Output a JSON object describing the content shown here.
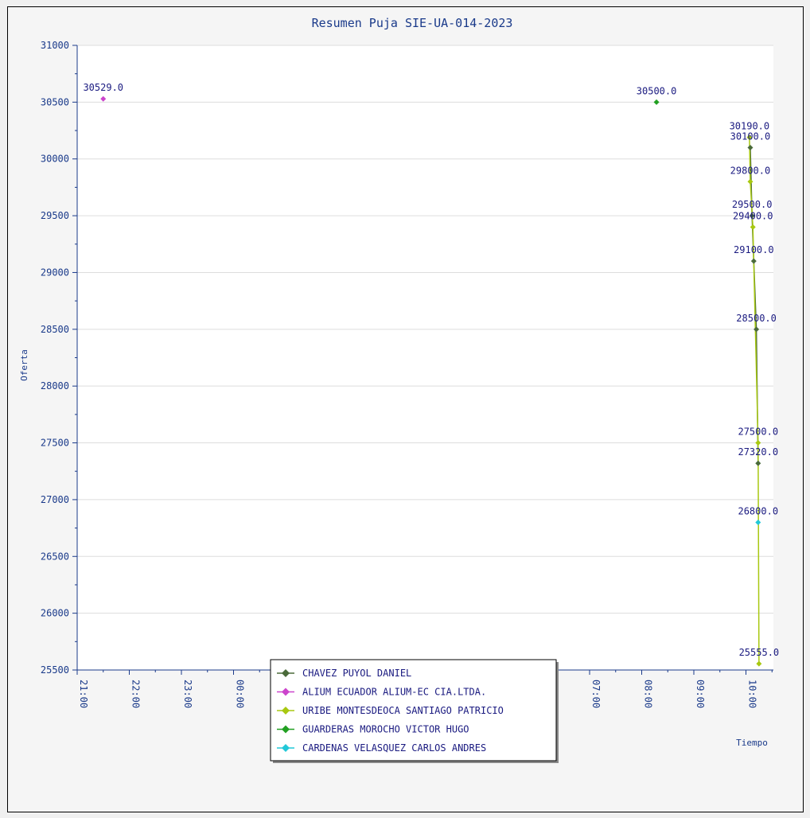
{
  "chart_data": {
    "type": "line",
    "title": "Resumen Puja SIE-UA-014-2023",
    "xlabel": "Tiempo",
    "ylabel": "Oferta",
    "ylim": [
      25500,
      31000
    ],
    "y_ticks": [
      25500,
      26000,
      26500,
      27000,
      27500,
      28000,
      28500,
      29000,
      29500,
      30000,
      30500,
      31000
    ],
    "x_tick_labels": [
      "21:00",
      "22:00",
      "23:00",
      "00:00",
      "07:00",
      "08:00",
      "09:00",
      "10:00"
    ],
    "grid": true,
    "legend_position": "bottom-center",
    "series": [
      {
        "name": "CHAVEZ PUYOL DANIEL",
        "color": "#4a6a3a",
        "points": [
          {
            "t": "10:05",
            "y": 30100,
            "label": "30100.0"
          },
          {
            "t": "10:07",
            "y": 29500,
            "label": "29500.0"
          },
          {
            "t": "10:09",
            "y": 29100,
            "label": "29100.0"
          },
          {
            "t": "10:12",
            "y": 28500,
            "label": "28500.0"
          },
          {
            "t": "10:14",
            "y": 27320,
            "label": "27320.0"
          }
        ]
      },
      {
        "name": "ALIUM ECUADOR ALIUM-EC CIA.LTDA.",
        "color": "#cc44cc",
        "points": [
          {
            "t": "21:30",
            "y": 30529,
            "label": "30529.0"
          }
        ]
      },
      {
        "name": "URIBE MONTESDEOCA SANTIAGO PATRICIO",
        "color": "#a8c810",
        "points": [
          {
            "t": "10:04",
            "y": 30190,
            "label": "30190.0"
          },
          {
            "t": "10:05",
            "y": 29800,
            "label": "29800.0"
          },
          {
            "t": "10:08",
            "y": 29400,
            "label": "29400.0"
          },
          {
            "t": "10:14",
            "y": 27500,
            "label": "27500.0"
          },
          {
            "t": "10:15",
            "y": 25555,
            "label": "25555.0"
          }
        ]
      },
      {
        "name": "GUARDERAS MOROCHO VICTOR HUGO",
        "color": "#22a022",
        "points": [
          {
            "t": "08:17",
            "y": 30500,
            "label": "30500.0"
          }
        ]
      },
      {
        "name": "CARDENAS VELASQUEZ CARLOS ANDRES",
        "color": "#22c8d8",
        "points": [
          {
            "t": "10:14",
            "y": 26800,
            "label": "26800.0"
          }
        ]
      }
    ]
  }
}
